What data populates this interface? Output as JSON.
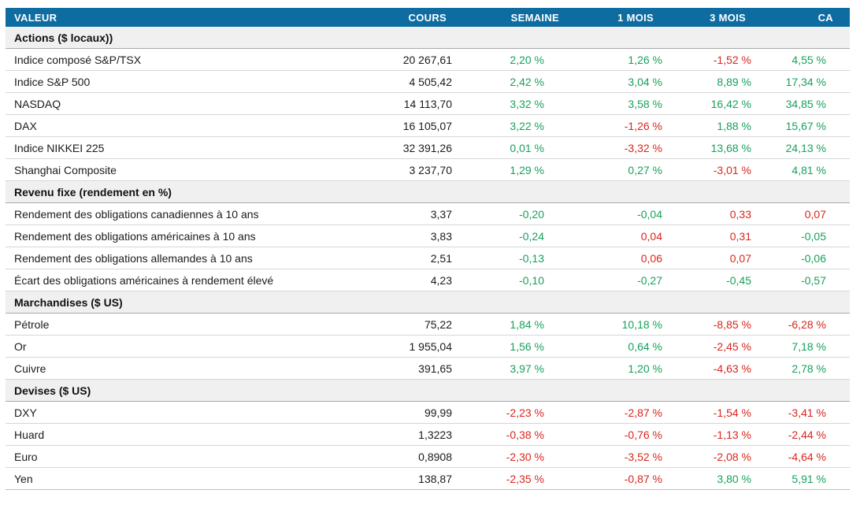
{
  "colors": {
    "header_bg": "#0f6ca0",
    "header_text": "#ffffff",
    "section_bg": "#f0f0f0",
    "positive": "#17a15a",
    "negative": "#d8261c"
  },
  "table": {
    "columns": [
      "VALEUR",
      "COURS",
      "SEMAINE",
      "1 MOIS",
      "3 MOIS",
      "CA"
    ],
    "sections": [
      {
        "title": "Actions ($ locaux))",
        "rows": [
          {
            "label": "Indice composé S&P/TSX",
            "cours": "20 267,61",
            "changes": [
              {
                "v": "2,20 %",
                "c": "pos"
              },
              {
                "v": "1,26 %",
                "c": "pos"
              },
              {
                "v": "-1,52 %",
                "c": "neg"
              },
              {
                "v": "4,55 %",
                "c": "pos"
              }
            ]
          },
          {
            "label": "Indice S&P 500",
            "cours": "4 505,42",
            "changes": [
              {
                "v": "2,42 %",
                "c": "pos"
              },
              {
                "v": "3,04 %",
                "c": "pos"
              },
              {
                "v": "8,89 %",
                "c": "pos"
              },
              {
                "v": "17,34 %",
                "c": "pos"
              }
            ]
          },
          {
            "label": "NASDAQ",
            "cours": "14 113,70",
            "changes": [
              {
                "v": "3,32 %",
                "c": "pos"
              },
              {
                "v": "3,58 %",
                "c": "pos"
              },
              {
                "v": "16,42 %",
                "c": "pos"
              },
              {
                "v": "34,85 %",
                "c": "pos"
              }
            ]
          },
          {
            "label": "DAX",
            "cours": "16 105,07",
            "changes": [
              {
                "v": "3,22 %",
                "c": "pos"
              },
              {
                "v": "-1,26 %",
                "c": "neg"
              },
              {
                "v": "1,88 %",
                "c": "pos"
              },
              {
                "v": "15,67 %",
                "c": "pos"
              }
            ]
          },
          {
            "label": "Indice NIKKEI 225",
            "cours": "32 391,26",
            "changes": [
              {
                "v": "0,01 %",
                "c": "pos"
              },
              {
                "v": "-3,32 %",
                "c": "neg"
              },
              {
                "v": "13,68 %",
                "c": "pos"
              },
              {
                "v": "24,13 %",
                "c": "pos"
              }
            ]
          },
          {
            "label": "Shanghai Composite",
            "cours": "3 237,70",
            "changes": [
              {
                "v": "1,29 %",
                "c": "pos"
              },
              {
                "v": "0,27 %",
                "c": "pos"
              },
              {
                "v": "-3,01 %",
                "c": "neg"
              },
              {
                "v": "4,81 %",
                "c": "pos"
              }
            ]
          }
        ]
      },
      {
        "title": "Revenu fixe (rendement en %)",
        "rows": [
          {
            "label": "Rendement des obligations canadiennes à 10 ans",
            "cours": "3,37",
            "changes": [
              {
                "v": "-0,20",
                "c": "pos"
              },
              {
                "v": "-0,04",
                "c": "pos"
              },
              {
                "v": "0,33",
                "c": "neg"
              },
              {
                "v": "0,07",
                "c": "neg"
              }
            ]
          },
          {
            "label": "Rendement des obligations américaines à 10 ans",
            "cours": "3,83",
            "changes": [
              {
                "v": "-0,24",
                "c": "pos"
              },
              {
                "v": "0,04",
                "c": "neg"
              },
              {
                "v": "0,31",
                "c": "neg"
              },
              {
                "v": "-0,05",
                "c": "pos"
              }
            ]
          },
          {
            "label": "Rendement des obligations allemandes à 10 ans",
            "cours": "2,51",
            "changes": [
              {
                "v": "-0,13",
                "c": "pos"
              },
              {
                "v": "0,06",
                "c": "neg"
              },
              {
                "v": "0,07",
                "c": "neg"
              },
              {
                "v": "-0,06",
                "c": "pos"
              }
            ]
          },
          {
            "label": "Écart des obligations américaines à rendement élevé",
            "cours": "4,23",
            "changes": [
              {
                "v": "-0,10",
                "c": "pos"
              },
              {
                "v": "-0,27",
                "c": "pos"
              },
              {
                "v": "-0,45",
                "c": "pos"
              },
              {
                "v": "-0,57",
                "c": "pos"
              }
            ]
          }
        ]
      },
      {
        "title": "Marchandises ($ US)",
        "rows": [
          {
            "label": "Pétrole",
            "cours": "75,22",
            "changes": [
              {
                "v": "1,84 %",
                "c": "pos"
              },
              {
                "v": "10,18 %",
                "c": "pos"
              },
              {
                "v": "-8,85 %",
                "c": "neg"
              },
              {
                "v": "-6,28 %",
                "c": "neg"
              }
            ]
          },
          {
            "label": "Or",
            "cours": "1 955,04",
            "changes": [
              {
                "v": "1,56 %",
                "c": "pos"
              },
              {
                "v": "0,64 %",
                "c": "pos"
              },
              {
                "v": "-2,45 %",
                "c": "neg"
              },
              {
                "v": "7,18 %",
                "c": "pos"
              }
            ]
          },
          {
            "label": "Cuivre",
            "cours": "391,65",
            "changes": [
              {
                "v": "3,97 %",
                "c": "pos"
              },
              {
                "v": "1,20 %",
                "c": "pos"
              },
              {
                "v": "-4,63 %",
                "c": "neg"
              },
              {
                "v": "2,78 %",
                "c": "pos"
              }
            ]
          }
        ]
      },
      {
        "title": "Devises ($ US)",
        "rows": [
          {
            "label": "DXY",
            "cours": "99,99",
            "changes": [
              {
                "v": "-2,23 %",
                "c": "neg"
              },
              {
                "v": "-2,87 %",
                "c": "neg"
              },
              {
                "v": "-1,54 %",
                "c": "neg"
              },
              {
                "v": "-3,41 %",
                "c": "neg"
              }
            ]
          },
          {
            "label": "Huard",
            "cours": "1,3223",
            "changes": [
              {
                "v": "-0,38 %",
                "c": "neg"
              },
              {
                "v": "-0,76 %",
                "c": "neg"
              },
              {
                "v": "-1,13 %",
                "c": "neg"
              },
              {
                "v": "-2,44 %",
                "c": "neg"
              }
            ]
          },
          {
            "label": "Euro",
            "cours": "0,8908",
            "changes": [
              {
                "v": "-2,30 %",
                "c": "neg"
              },
              {
                "v": "-3,52 %",
                "c": "neg"
              },
              {
                "v": "-2,08 %",
                "c": "neg"
              },
              {
                "v": "-4,64 %",
                "c": "neg"
              }
            ]
          },
          {
            "label": "Yen",
            "cours": "138,87",
            "changes": [
              {
                "v": "-2,35 %",
                "c": "neg"
              },
              {
                "v": "-0,87 %",
                "c": "neg"
              },
              {
                "v": "3,80 %",
                "c": "pos"
              },
              {
                "v": "5,91 %",
                "c": "pos"
              }
            ]
          }
        ]
      }
    ]
  }
}
